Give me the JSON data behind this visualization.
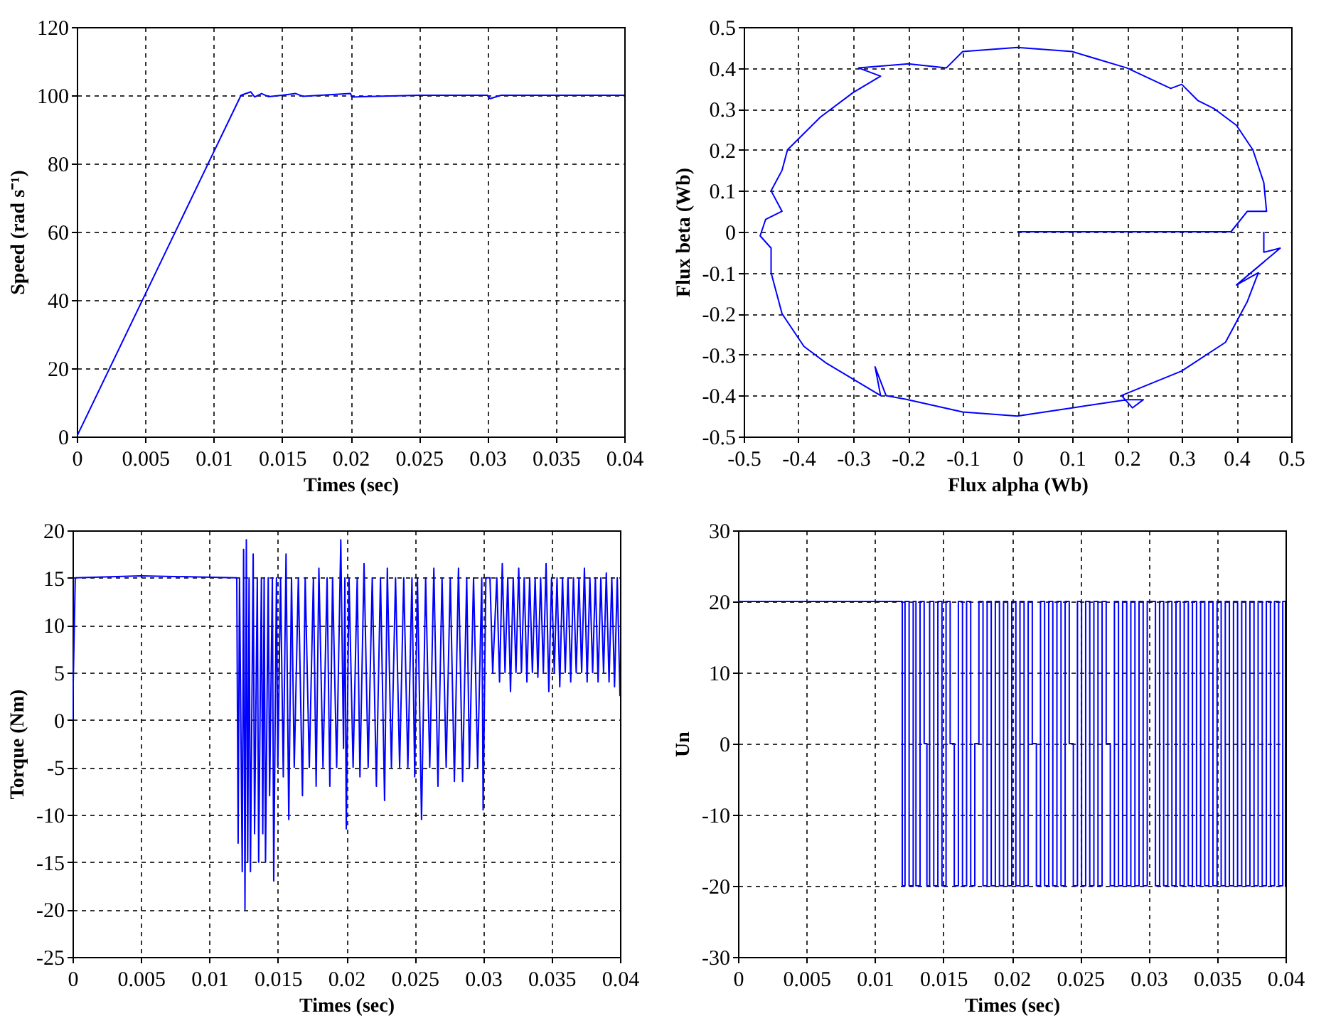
{
  "chart_data": [
    {
      "type": "line",
      "xlabel": "Times (sec)",
      "ylabel": "Speed (rad s⁻¹)",
      "xlim": [
        0,
        0.04
      ],
      "xticks": [
        0,
        0.005,
        0.01,
        0.015,
        0.02,
        0.025,
        0.03,
        0.035,
        0.04
      ],
      "ylim": [
        0,
        120
      ],
      "yticks": [
        0,
        20,
        40,
        60,
        80,
        100,
        120
      ],
      "grid": true,
      "x": [
        0,
        0.012,
        0.0127,
        0.013,
        0.0135,
        0.014,
        0.015,
        0.016,
        0.0165,
        0.02,
        0.0201,
        0.025,
        0.03,
        0.0302,
        0.031,
        0.04
      ],
      "series": [
        {
          "color": "#0000ff",
          "values": [
            0,
            100,
            101,
            99.5,
            100.5,
            99.6,
            100,
            100.5,
            99.7,
            100.5,
            99.5,
            100,
            100,
            99,
            100,
            100
          ]
        }
      ]
    },
    {
      "type": "line",
      "xlabel": "Flux alpha (Wb)",
      "ylabel": "Flux beta (Wb)",
      "xlim": [
        -0.5,
        0.5
      ],
      "xticks": [
        -0.5,
        -0.4,
        -0.3,
        -0.2,
        -0.1,
        0,
        0.1,
        0.2,
        0.3,
        0.4,
        0.5
      ],
      "ylim": [
        -0.5,
        0.5
      ],
      "yticks": [
        -0.5,
        -0.4,
        -0.3,
        -0.2,
        -0.1,
        0,
        0.1,
        0.2,
        0.3,
        0.4,
        0.5
      ],
      "grid": true,
      "series": [
        {
          "color": "#0000ff",
          "x": [
            0,
            0.39,
            0.42,
            0.455,
            0.45,
            0.43,
            0.4,
            0.36,
            0.33,
            0.3,
            0.28,
            0.2,
            0.1,
            0,
            -0.1,
            -0.13,
            -0.2,
            -0.29,
            -0.25,
            -0.3,
            -0.36,
            -0.42,
            -0.43,
            -0.45,
            -0.43,
            -0.46,
            -0.47,
            -0.45,
            -0.45,
            -0.43,
            -0.39,
            -0.35,
            -0.3,
            -0.25,
            -0.26,
            -0.24,
            -0.2,
            -0.1,
            0,
            0.1,
            0.2,
            0.23,
            0.21,
            0.19,
            0.3,
            0.38,
            0.42,
            0.44,
            0.4,
            0.48,
            0.45,
            0.45
          ],
          "values": [
            0,
            0,
            0.05,
            0.05,
            0.12,
            0.2,
            0.26,
            0.3,
            0.32,
            0.36,
            0.35,
            0.4,
            0.44,
            0.45,
            0.44,
            0.4,
            0.41,
            0.4,
            0.38,
            0.34,
            0.28,
            0.2,
            0.15,
            0.1,
            0.05,
            0.03,
            -0.01,
            -0.04,
            -0.1,
            -0.2,
            -0.28,
            -0.32,
            -0.36,
            -0.4,
            -0.33,
            -0.4,
            -0.41,
            -0.44,
            -0.45,
            -0.43,
            -0.41,
            -0.41,
            -0.43,
            -0.4,
            -0.34,
            -0.27,
            -0.17,
            -0.1,
            -0.13,
            -0.04,
            -0.05,
            0
          ]
        }
      ]
    },
    {
      "type": "line",
      "xlabel": "Times (sec)",
      "ylabel": "Torque (Nm)",
      "xlim": [
        0,
        0.04
      ],
      "xticks": [
        0,
        0.005,
        0.01,
        0.015,
        0.02,
        0.025,
        0.03,
        0.035,
        0.04
      ],
      "ylim": [
        -25,
        20
      ],
      "yticks": [
        -25,
        -20,
        -15,
        -10,
        -5,
        0,
        5,
        10,
        15,
        20
      ],
      "grid": true,
      "x": [
        0,
        0.0002,
        0.005,
        0.012,
        0.0121,
        0.0122,
        0.0124,
        0.0125,
        0.0126,
        0.0127,
        0.0128,
        0.0129,
        0.013,
        0.0132,
        0.0133,
        0.0135,
        0.0136,
        0.0138,
        0.0139,
        0.014,
        0.0141,
        0.0143,
        0.0144,
        0.0146,
        0.0147,
        0.0149,
        0.015,
        0.0152,
        0.0154,
        0.0156,
        0.0158,
        0.016,
        0.0162,
        0.0165,
        0.0168,
        0.017,
        0.0173,
        0.0176,
        0.0178,
        0.018,
        0.0183,
        0.0186,
        0.0188,
        0.019,
        0.0193,
        0.0196,
        0.0198,
        0.0199,
        0.02,
        0.0202,
        0.0205,
        0.0208,
        0.021,
        0.0213,
        0.0216,
        0.0219,
        0.0222,
        0.0225,
        0.0228,
        0.023,
        0.0233,
        0.0236,
        0.0239,
        0.0242,
        0.0245,
        0.0248,
        0.025,
        0.0252,
        0.0255,
        0.0258,
        0.0261,
        0.0264,
        0.0267,
        0.027,
        0.0273,
        0.0276,
        0.0279,
        0.0282,
        0.0285,
        0.0288,
        0.029,
        0.0293,
        0.0296,
        0.0299,
        0.03,
        0.0302,
        0.0305,
        0.0307,
        0.031,
        0.0312,
        0.0314,
        0.0316,
        0.0318,
        0.032,
        0.0322,
        0.0324,
        0.0326,
        0.0328,
        0.033,
        0.0332,
        0.0334,
        0.0336,
        0.0338,
        0.034,
        0.0342,
        0.0344,
        0.0346,
        0.0348,
        0.035,
        0.0352,
        0.0354,
        0.0356,
        0.0358,
        0.036,
        0.0362,
        0.0364,
        0.0366,
        0.0368,
        0.037,
        0.0372,
        0.0374,
        0.0376,
        0.0378,
        0.038,
        0.0382,
        0.0384,
        0.0386,
        0.0388,
        0.039,
        0.0392,
        0.0394,
        0.0396,
        0.0398,
        0.04
      ],
      "series": [
        {
          "color": "#0000ff",
          "values": [
            0,
            15,
            15.2,
            15,
            -13,
            15,
            -16,
            18,
            -20,
            19,
            -15,
            15,
            -16,
            17.5,
            -12,
            15,
            -15,
            15,
            -12,
            15,
            -15,
            15,
            -8,
            15,
            -17,
            15,
            -5,
            15,
            -6,
            17.5,
            -10.5,
            15,
            -5,
            15,
            -8,
            15,
            -5,
            15,
            -7,
            16,
            -5,
            15,
            -7,
            15,
            -5,
            19,
            -3,
            15,
            -11.5,
            15,
            -5,
            15,
            -6,
            16.5,
            -5,
            15,
            -7,
            15,
            -8.5,
            16,
            -5,
            15,
            -5,
            15,
            -5,
            15,
            -6,
            15,
            -10.5,
            15,
            -5,
            16,
            -7,
            15,
            -5,
            15,
            -6.5,
            16,
            -6.5,
            15,
            -5,
            15,
            -5,
            15,
            -9.5,
            15,
            15,
            5,
            15,
            4,
            16.5,
            5,
            15,
            3,
            15,
            5,
            16,
            5,
            15,
            4,
            15,
            5,
            15,
            4.5,
            15,
            5,
            16.5,
            3,
            15,
            5,
            15,
            3.5,
            15,
            5,
            15,
            4,
            15,
            5,
            15,
            5,
            16,
            4,
            15,
            5,
            15,
            4,
            15,
            5,
            15.5,
            4,
            15,
            3.5,
            15,
            2.5
          ]
        }
      ]
    },
    {
      "type": "step",
      "xlabel": "Times (sec)",
      "ylabel": "Un",
      "xlim": [
        0,
        0.04
      ],
      "xticks": [
        0,
        0.005,
        0.01,
        0.015,
        0.02,
        0.025,
        0.03,
        0.035,
        0.04
      ],
      "ylim": [
        -30,
        30
      ],
      "yticks": [
        -30,
        -20,
        -10,
        0,
        10,
        20,
        30
      ],
      "grid": true,
      "x": [
        0,
        0.012,
        0.0122,
        0.0125,
        0.0128,
        0.013,
        0.0133,
        0.0136,
        0.0138,
        0.014,
        0.0143,
        0.0146,
        0.0149,
        0.0152,
        0.0155,
        0.0158,
        0.0161,
        0.0164,
        0.0167,
        0.017,
        0.0173,
        0.0176,
        0.0179,
        0.0182,
        0.0185,
        0.0188,
        0.0191,
        0.0194,
        0.0197,
        0.02,
        0.0203,
        0.0206,
        0.0209,
        0.0212,
        0.0215,
        0.0218,
        0.0221,
        0.0224,
        0.0227,
        0.023,
        0.0233,
        0.0236,
        0.0239,
        0.0242,
        0.0245,
        0.0248,
        0.0251,
        0.0254,
        0.0257,
        0.026,
        0.0263,
        0.0266,
        0.0269,
        0.0272,
        0.0275,
        0.0278,
        0.0281,
        0.0284,
        0.0287,
        0.029,
        0.0293,
        0.0296,
        0.0299,
        0.0305,
        0.0308,
        0.0311,
        0.0314,
        0.0317,
        0.032,
        0.0323,
        0.0326,
        0.0329,
        0.0332,
        0.0335,
        0.0338,
        0.0341,
        0.0344,
        0.0347,
        0.035,
        0.0353,
        0.0356,
        0.0359,
        0.0362,
        0.0365,
        0.0368,
        0.0371,
        0.0374,
        0.0377,
        0.038,
        0.0383,
        0.0386,
        0.0389,
        0.0392,
        0.0395,
        0.0398,
        0.04
      ],
      "series": [
        {
          "color": "#0000ff",
          "values": [
            20,
            -20,
            20,
            -20,
            20,
            -20,
            20,
            0,
            -20,
            20,
            -20,
            20,
            -20,
            20,
            0,
            -20,
            20,
            -20,
            20,
            -20,
            0,
            20,
            -20,
            20,
            -20,
            20,
            -20,
            20,
            -20,
            20,
            -20,
            20,
            -20,
            20,
            0,
            -20,
            20,
            -20,
            20,
            -20,
            20,
            -20,
            20,
            0,
            -20,
            20,
            -20,
            20,
            -20,
            20,
            -20,
            20,
            0,
            -20,
            20,
            -20,
            20,
            -20,
            20,
            -20,
            20,
            -20,
            20,
            -20,
            20,
            -20,
            20,
            -20,
            20,
            -20,
            20,
            -20,
            20,
            -20,
            20,
            -20,
            20,
            -20,
            20,
            -20,
            20,
            -20,
            20,
            -20,
            20,
            -20,
            20,
            -20,
            20,
            -20,
            20,
            -20,
            20,
            -20,
            20,
            -20
          ]
        }
      ]
    }
  ]
}
